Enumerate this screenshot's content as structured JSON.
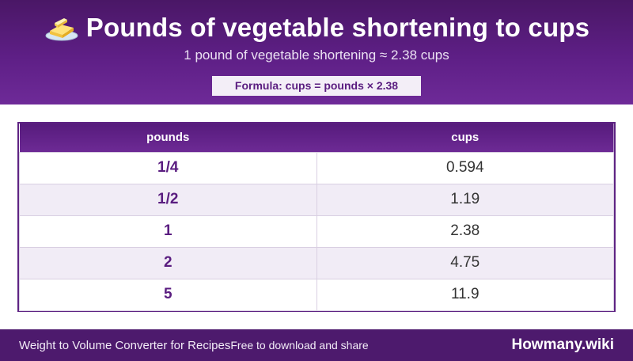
{
  "header": {
    "icon": "butter-icon",
    "title": "Pounds of vegetable shortening to cups",
    "subtitle": "1 pound of vegetable shortening ≈ 2.38 cups",
    "formula": "Formula: cups = pounds × 2.38"
  },
  "table": {
    "columns": [
      "pounds",
      "cups"
    ],
    "rows": [
      [
        "1/4",
        "0.594"
      ],
      [
        "1/2",
        "1.19"
      ],
      [
        "1",
        "2.38"
      ],
      [
        "2",
        "4.75"
      ],
      [
        "5",
        "11.9"
      ]
    ]
  },
  "footer": {
    "left_text": "Weight to Volume Converter for Recipes",
    "share_text": "Free to download and share",
    "brand": "Howmany.wiki"
  },
  "colors": {
    "header_purple": "#5e1f86",
    "accent_text": "#5a1d80",
    "footer_purple": "#4d1a6d"
  }
}
